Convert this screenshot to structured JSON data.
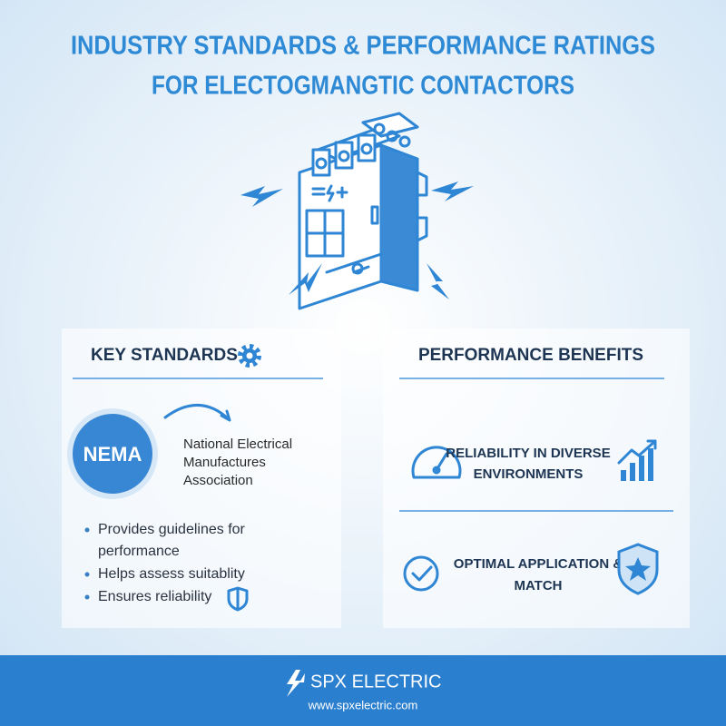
{
  "header": {
    "title_lines": [
      "INDUSTRY STANDARDS & PERFORMANCE RATINGS",
      "FOR ELECTOGMANGTIC CONTACTORS"
    ]
  },
  "key_standards": {
    "heading": "KEY STANDARDS",
    "badge": "NEMA",
    "description_lines": [
      "National Electrical",
      "Manufactures",
      "Association"
    ],
    "bullets": [
      [
        "Provides guidelines for",
        "performance"
      ],
      [
        "Helps assess suitablity"
      ],
      [
        "Ensures reliability"
      ]
    ]
  },
  "performance_benefits": {
    "heading": "PERFORMANCE BENEFITS",
    "items": [
      {
        "lines": [
          "RELIABILITY IN DIVERSE",
          "ENVIRONMENTS"
        ]
      },
      {
        "lines": [
          "OPTIMAL APPLICATION &",
          "MATCH"
        ]
      }
    ]
  },
  "footer": {
    "brand": "SPX ELECTRIC",
    "url": "www.spxelectric.com"
  }
}
